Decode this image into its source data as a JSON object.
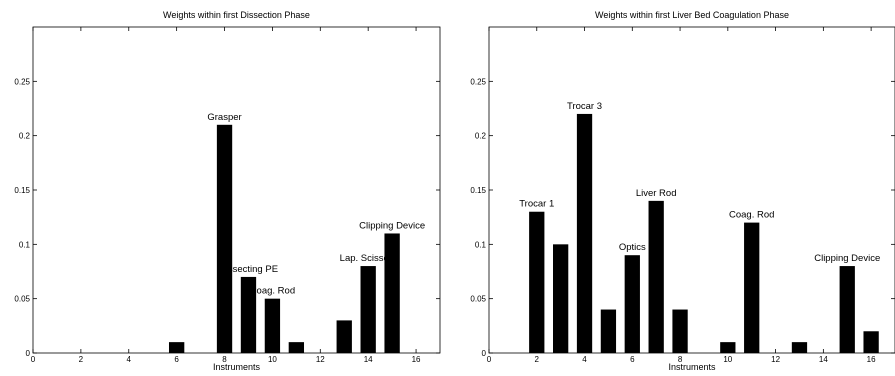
{
  "chart_data": [
    {
      "type": "bar",
      "title": "Weights within first Dissection Phase",
      "xlabel": "Instruments",
      "ylabel": "",
      "xlim": [
        0,
        17
      ],
      "ylim": [
        0,
        0.3
      ],
      "xticks": [
        "0",
        "2",
        "4",
        "6",
        "8",
        "10",
        "12",
        "14",
        "16"
      ],
      "yticks": [
        "0",
        "0.05",
        "0.1",
        "0.15",
        "0.2",
        "0.25"
      ],
      "x": [
        6,
        8,
        9,
        10,
        11,
        13,
        14,
        15
      ],
      "values": [
        0.01,
        0.21,
        0.07,
        0.05,
        0.01,
        0.03,
        0.08,
        0.11
      ],
      "annotations": [
        {
          "x": 8,
          "y": 0.21,
          "text": "Grasper"
        },
        {
          "x": 9,
          "y": 0.07,
          "text": "Dissecting PE"
        },
        {
          "x": 10,
          "y": 0.05,
          "text": "Coag. Rod"
        },
        {
          "x": 14,
          "y": 0.08,
          "text": "Lap. Scissors"
        },
        {
          "x": 15,
          "y": 0.11,
          "text": "Clipping Device"
        }
      ]
    },
    {
      "type": "bar",
      "title": "Weights within first Liver Bed Coagulation Phase",
      "xlabel": "Instruments",
      "ylabel": "",
      "xlim": [
        0,
        17
      ],
      "ylim": [
        0,
        0.3
      ],
      "xticks": [
        "0",
        "2",
        "4",
        "6",
        "8",
        "10",
        "12",
        "14",
        "16"
      ],
      "yticks": [
        "0",
        "0.05",
        "0.1",
        "0.15",
        "0.2",
        "0.25"
      ],
      "x": [
        2,
        3,
        4,
        5,
        6,
        7,
        8,
        10,
        11,
        13,
        15,
        16
      ],
      "values": [
        0.13,
        0.1,
        0.22,
        0.04,
        0.09,
        0.14,
        0.04,
        0.01,
        0.12,
        0.01,
        0.08,
        0.02
      ],
      "annotations": [
        {
          "x": 2,
          "y": 0.13,
          "text": "Trocar 1"
        },
        {
          "x": 4,
          "y": 0.22,
          "text": "Trocar 3"
        },
        {
          "x": 6,
          "y": 0.09,
          "text": "Optics"
        },
        {
          "x": 7,
          "y": 0.14,
          "text": "Liver Rod"
        },
        {
          "x": 11,
          "y": 0.12,
          "text": "Coag. Rod"
        },
        {
          "x": 15,
          "y": 0.08,
          "text": "Clipping Device"
        }
      ]
    }
  ]
}
